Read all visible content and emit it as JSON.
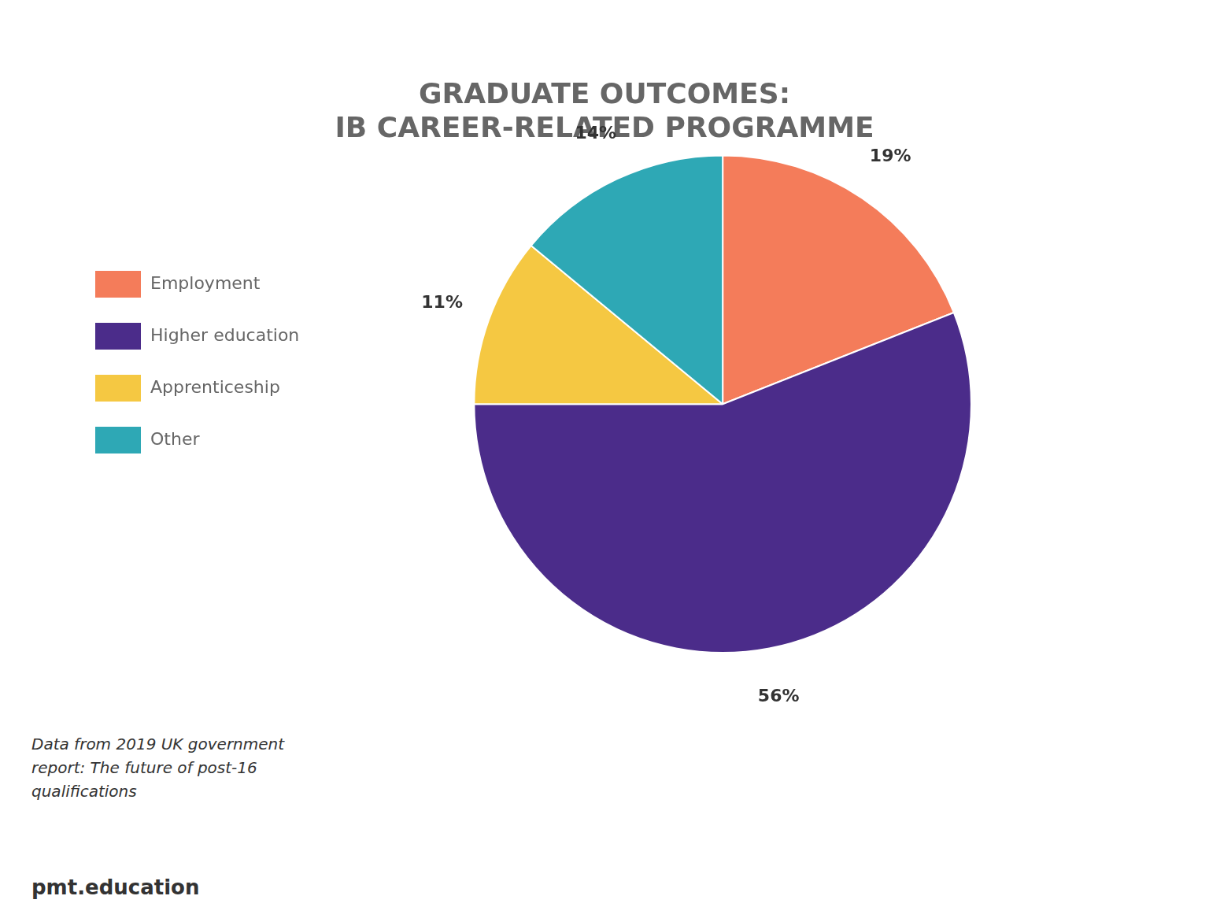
{
  "chart_data": {
    "type": "pie",
    "title": [
      "GRADUATE OUTCOMES:",
      "IB CAREER-RELATED PROGRAMME"
    ],
    "categories": [
      "Employment",
      "Higher education",
      "Apprenticeship",
      "Other"
    ],
    "values": [
      19,
      56,
      11,
      14
    ],
    "value_labels": [
      "19%",
      "56%",
      "11%",
      "14%"
    ],
    "colors": [
      "#f47c5a",
      "#4b2c8a",
      "#f5c842",
      "#2ea8b5"
    ],
    "data_labels": true,
    "legend": "left",
    "annotations": [
      "Data from 2019 UK government\nreport: The future of post-16\nqualifications",
      "pmt.education"
    ]
  }
}
